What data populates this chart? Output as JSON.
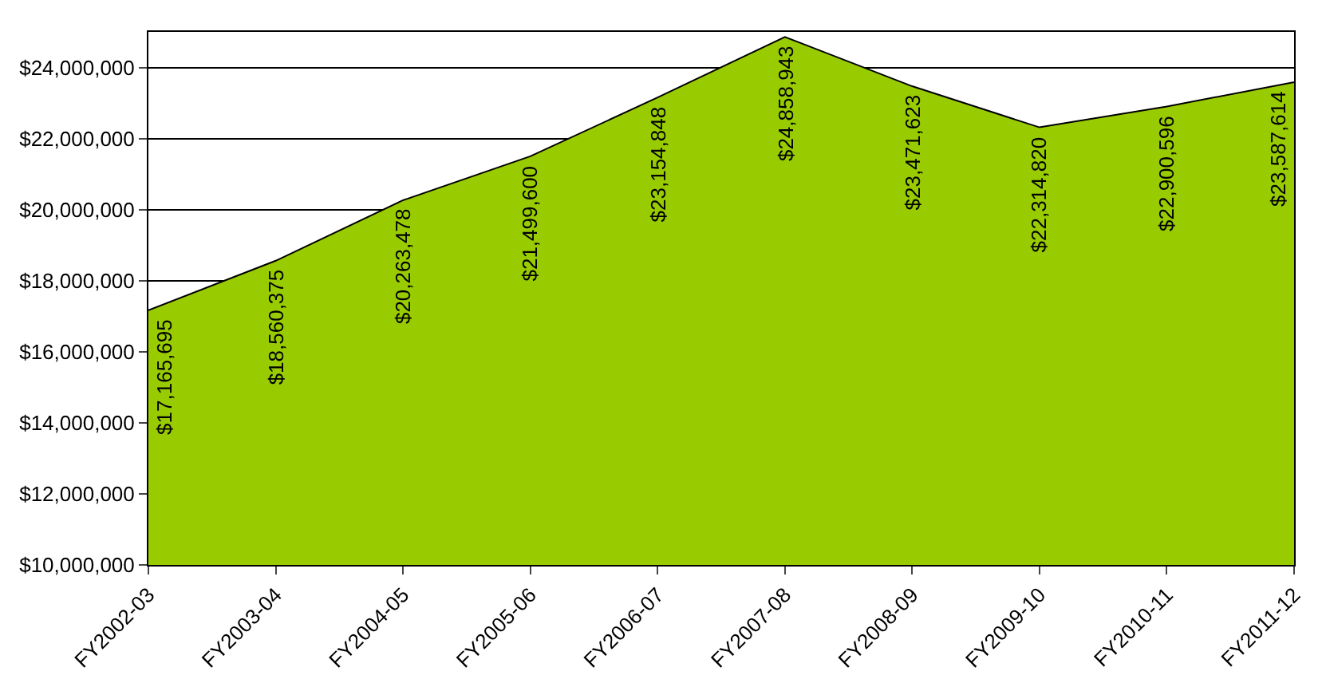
{
  "chart_data": {
    "type": "area",
    "categories": [
      "FY2002-03",
      "FY2003-04",
      "FY2004-05",
      "FY2005-06",
      "FY2006-07",
      "FY2007-08",
      "FY2008-09",
      "FY2009-10",
      "FY2010-11",
      "FY2011-12"
    ],
    "values": [
      17165695,
      18560375,
      20263478,
      21499600,
      23154848,
      24858943,
      23471623,
      22314820,
      22900596,
      23587614
    ],
    "value_labels": [
      "$17,165,695",
      "$18,560,375",
      "$20,263,478",
      "$21,499,600",
      "$23,154,848",
      "$24,858,943",
      "$23,471,623",
      "$22,314,820",
      "$22,900,596",
      "$23,587,614"
    ],
    "color": "#99cc00",
    "ylim": [
      10000000,
      25000000
    ],
    "yticks": [
      {
        "value": 10000000,
        "label": "$10,000,000"
      },
      {
        "value": 12000000,
        "label": "$12,000,000"
      },
      {
        "value": 14000000,
        "label": "$14,000,000"
      },
      {
        "value": 16000000,
        "label": "$16,000,000"
      },
      {
        "value": 18000000,
        "label": "$18,000,000"
      },
      {
        "value": 20000000,
        "label": "$20,000,000"
      },
      {
        "value": 22000000,
        "label": "$22,000,000"
      },
      {
        "value": 24000000,
        "label": "$24,000,000"
      }
    ],
    "grid": "y",
    "legend": false
  }
}
